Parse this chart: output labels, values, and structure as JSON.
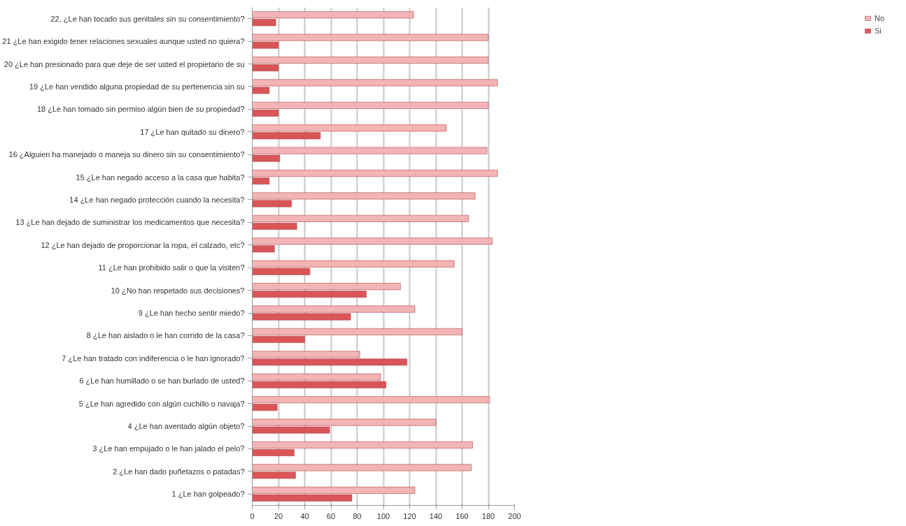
{
  "chart_data": {
    "type": "bar",
    "orientation": "horizontal",
    "categories": [
      "22. ¿Le han tocado sus genitales sin su consentimiento?",
      "21 ¿Le han exigido tener relaciones sexuales aunque usted no quiera?",
      "20 ¿Le han presionado para que deje de ser usted el propietario de su",
      "19 ¿Le han vendido alguna propiedad de su pertenencia sin su",
      "18 ¿Le han tomado sin permiso algún bien de su propiedad?",
      "17 ¿Le han quitado su dinero?",
      "16 ¿Alguien ha manejado o maneja su dinero sin su consentimiento?",
      "15 ¿Le han negado acceso a la casa que habita?",
      "14 ¿Le han negado protección cuando la necesita?",
      "13 ¿Le han dejado de suministrar los medicamentos que necesita?",
      "12 ¿Le han dejado de proporcionar la ropa, el calzado, etc?",
      "11 ¿Le han prohibido salir o que la visiten?",
      "10 ¿No han respetado sus decisiones?",
      "9 ¿Le han hecho sentir miedo?",
      "8 ¿Le han aislado o le han corrido de la casa?",
      "7 ¿Le han tratado con indiferencia o le han ignorado?",
      "6 ¿Le han humillado o se han burlado de usted?",
      "5 ¿Le han agredido con algún cuchillo o navaja?",
      "4 ¿Le han aventado algún objeto?",
      "3 ¿Le han empujado o le han jalado el pelo?",
      "2 ¿Le han dado puñetazos o patadas?",
      "1 ¿Le han golpeado?"
    ],
    "series": [
      {
        "name": "No",
        "color": "#f2b4b4",
        "values": [
          123,
          180,
          180,
          187,
          180,
          148,
          179,
          187,
          170,
          165,
          183,
          154,
          113,
          124,
          160,
          82,
          98,
          181,
          140,
          168,
          167,
          124
        ]
      },
      {
        "name": "Si",
        "color": "#d95558",
        "values": [
          18,
          20,
          20,
          13,
          20,
          52,
          21,
          13,
          30,
          34,
          17,
          44,
          87,
          75,
          40,
          118,
          102,
          19,
          59,
          32,
          33,
          76
        ]
      }
    ],
    "xlim": [
      0,
      200
    ],
    "xticks": [
      0,
      20,
      40,
      60,
      80,
      100,
      120,
      140,
      160,
      180,
      200
    ],
    "grid": "x",
    "legend": "right"
  }
}
